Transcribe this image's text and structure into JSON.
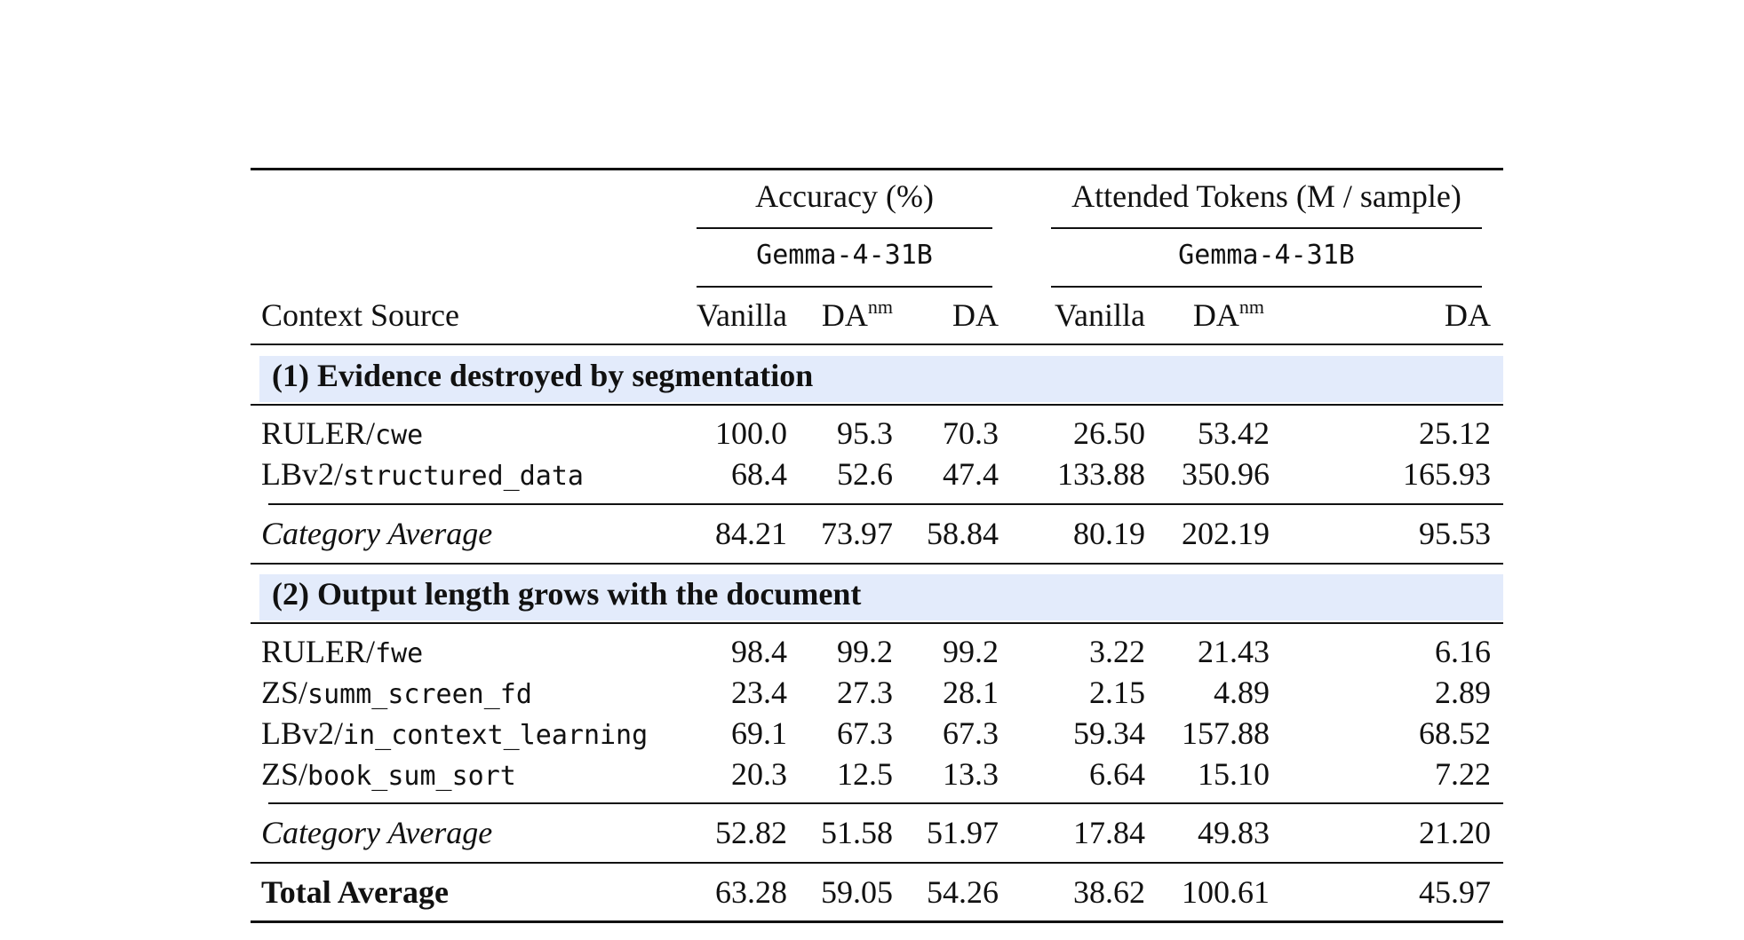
{
  "header": {
    "group_accuracy": "Accuracy (%)",
    "group_tokens": "Attended Tokens (M / sample)",
    "model_accuracy": "Gemma-4-31B",
    "model_tokens": "Gemma-4-31B",
    "col_source": "Context Source",
    "col_vanilla": "Vanilla",
    "col_da_base": "DA",
    "col_da_sup": "nm",
    "col_da": "DA"
  },
  "sections": [
    {
      "title": "(1) Evidence destroyed by segmentation",
      "rows": [
        {
          "prefix": "RULER/",
          "name": "cwe",
          "values": [
            "100.0",
            "95.3",
            "70.3",
            "26.50",
            "53.42",
            "25.12"
          ]
        },
        {
          "prefix": "LBv2/",
          "name": "structured_data",
          "values": [
            "68.4",
            "52.6",
            "47.4",
            "133.88",
            "350.96",
            "165.93"
          ]
        }
      ],
      "average": {
        "label": "Category Average",
        "values": [
          "84.21",
          "73.97",
          "58.84",
          "80.19",
          "202.19",
          "95.53"
        ]
      }
    },
    {
      "title": "(2) Output length grows with the document",
      "rows": [
        {
          "prefix": "RULER/",
          "name": "fwe",
          "values": [
            "98.4",
            "99.2",
            "99.2",
            "3.22",
            "21.43",
            "6.16"
          ]
        },
        {
          "prefix": "ZS/",
          "name": "summ_screen_fd",
          "values": [
            "23.4",
            "27.3",
            "28.1",
            "2.15",
            "4.89",
            "2.89"
          ]
        },
        {
          "prefix": "LBv2/",
          "name": "in_context_learning",
          "values": [
            "69.1",
            "67.3",
            "67.3",
            "59.34",
            "157.88",
            "68.52"
          ]
        },
        {
          "prefix": "ZS/",
          "name": "book_sum_sort",
          "values": [
            "20.3",
            "12.5",
            "13.3",
            "6.64",
            "15.10",
            "7.22"
          ]
        }
      ],
      "average": {
        "label": "Category Average",
        "values": [
          "52.82",
          "51.58",
          "51.97",
          "17.84",
          "49.83",
          "21.20"
        ]
      }
    }
  ],
  "total": {
    "label": "Total Average",
    "values": [
      "63.28",
      "59.05",
      "54.26",
      "38.62",
      "100.61",
      "45.97"
    ]
  },
  "colors": {
    "section_band": "#e3ebfb",
    "rule": "#111111"
  }
}
